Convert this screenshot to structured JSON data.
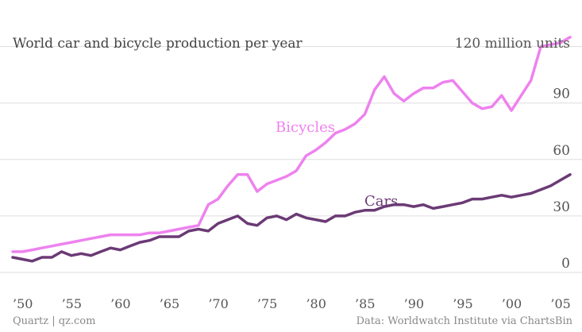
{
  "chart_data": {
    "type": "line",
    "title": "World car and bicycle production per year",
    "unit_label": "120 million units",
    "ylim": [
      0,
      125
    ],
    "xlim": [
      1950,
      2007
    ],
    "y_ticks": [
      0,
      30,
      60,
      90
    ],
    "x_ticks": [
      {
        "value": 1950,
        "label": "’50"
      },
      {
        "value": 1955,
        "label": "’55"
      },
      {
        "value": 1960,
        "label": "’60"
      },
      {
        "value": 1965,
        "label": "’65"
      },
      {
        "value": 1970,
        "label": "’70"
      },
      {
        "value": 1975,
        "label": "’75"
      },
      {
        "value": 1980,
        "label": "’80"
      },
      {
        "value": 1985,
        "label": "’85"
      },
      {
        "value": 1990,
        "label": "’90"
      },
      {
        "value": 1995,
        "label": "’95"
      },
      {
        "value": 2000,
        "label": "’00"
      },
      {
        "value": 2005,
        "label": "’05"
      }
    ],
    "grid": true,
    "series": [
      {
        "name": "Bicycles",
        "color": "#ee82ee",
        "x": [
          1950,
          1951,
          1952,
          1953,
          1954,
          1955,
          1956,
          1957,
          1958,
          1959,
          1960,
          1961,
          1962,
          1963,
          1964,
          1965,
          1966,
          1967,
          1968,
          1969,
          1970,
          1971,
          1972,
          1973,
          1974,
          1975,
          1976,
          1977,
          1978,
          1979,
          1980,
          1981,
          1982,
          1983,
          1984,
          1985,
          1986,
          1987,
          1988,
          1989,
          1990,
          1991,
          1992,
          1993,
          1994,
          1995,
          1996,
          1997,
          1998,
          1999,
          2000,
          2001,
          2002,
          2003,
          2004,
          2005,
          2006,
          2007
        ],
        "values": [
          11,
          11,
          12,
          13,
          14,
          15,
          16,
          17,
          18,
          19,
          20,
          20,
          20,
          20,
          21,
          21,
          22,
          23,
          24,
          25,
          36,
          39,
          46,
          52,
          52,
          43,
          47,
          49,
          51,
          54,
          62,
          65,
          69,
          74,
          76,
          79,
          84,
          97,
          104,
          95,
          91,
          95,
          98,
          98,
          101,
          102,
          96,
          90,
          87,
          88,
          94,
          86,
          94,
          102,
          120,
          121,
          122,
          125
        ]
      },
      {
        "name": "Cars",
        "color": "#6b3a75",
        "x": [
          1950,
          1951,
          1952,
          1953,
          1954,
          1955,
          1956,
          1957,
          1958,
          1959,
          1960,
          1961,
          1962,
          1963,
          1964,
          1965,
          1966,
          1967,
          1968,
          1969,
          1970,
          1971,
          1972,
          1973,
          1974,
          1975,
          1976,
          1977,
          1978,
          1979,
          1980,
          1981,
          1982,
          1983,
          1984,
          1985,
          1986,
          1987,
          1988,
          1989,
          1990,
          1991,
          1992,
          1993,
          1994,
          1995,
          1996,
          1997,
          1998,
          1999,
          2000,
          2001,
          2002,
          2003,
          2004,
          2005,
          2006,
          2007
        ],
        "values": [
          8,
          7,
          6,
          8,
          8,
          11,
          9,
          10,
          9,
          11,
          13,
          12,
          14,
          16,
          17,
          19,
          19,
          19,
          22,
          23,
          22,
          26,
          28,
          30,
          26,
          25,
          29,
          30,
          28,
          31,
          29,
          28,
          27,
          30,
          30,
          32,
          33,
          33,
          35,
          36,
          36,
          35,
          36,
          34,
          35,
          36,
          37,
          39,
          39,
          40,
          41,
          40,
          41,
          42,
          44,
          46,
          49,
          52
        ]
      }
    ]
  },
  "footer": {
    "left": "Quartz | qz.com",
    "right": "Data: Worldwatch Institute via ChartsBin"
  }
}
